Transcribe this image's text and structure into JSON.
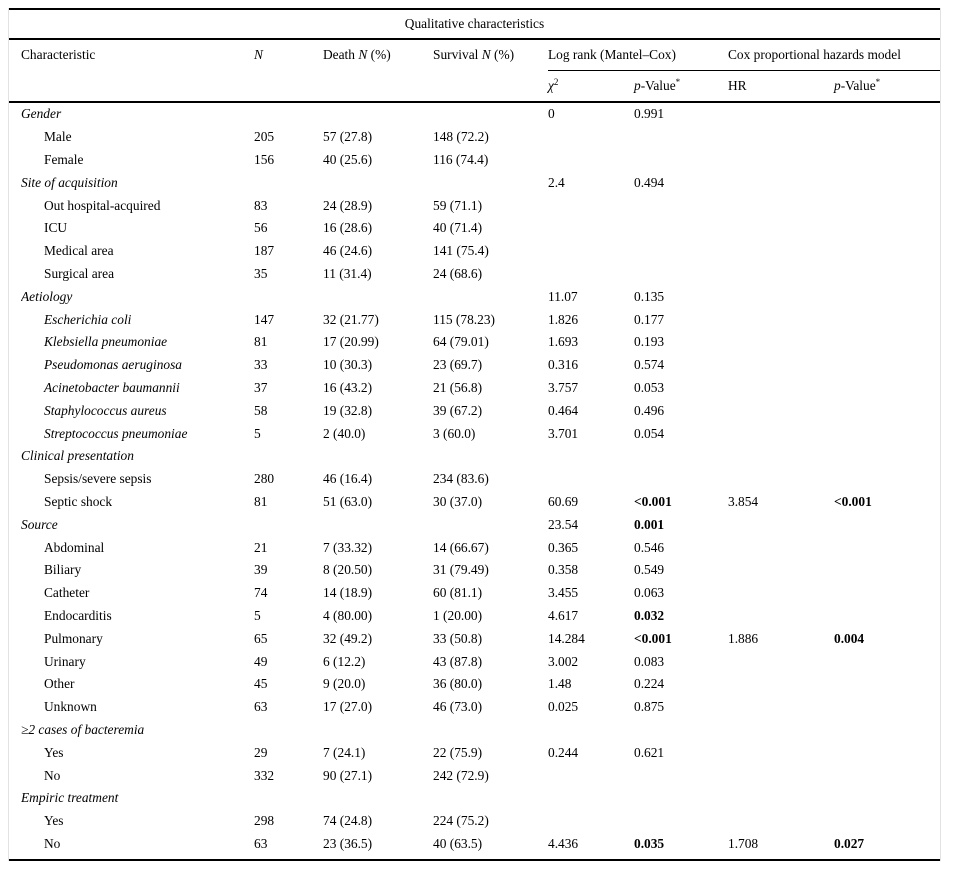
{
  "title": "Qualitative characteristics",
  "columns": {
    "characteristic": "Characteristic",
    "n": "N",
    "death_prefix": "Death ",
    "survival_prefix": "Survival ",
    "pct_suffix": " (%)",
    "logrank_group": "Log rank (Mantel–Cox)",
    "cox_group": "Cox proportional hazards model",
    "chi": "χ",
    "chi_sup": "2",
    "p_italic": "p",
    "p_rest": "-Value",
    "p_sup": "*",
    "hr": "HR"
  },
  "rows": [
    {
      "kind": "group",
      "label": "Gender",
      "chi2": "0",
      "p1": "0.991"
    },
    {
      "kind": "item",
      "label": "Male",
      "n": "205",
      "death": "57 (27.8)",
      "survival": "148 (72.2)"
    },
    {
      "kind": "item",
      "label": "Female",
      "n": "156",
      "death": "40 (25.6)",
      "survival": "116 (74.4)"
    },
    {
      "kind": "group",
      "label": "Site of acquisition",
      "chi2": "2.4",
      "p1": "0.494"
    },
    {
      "kind": "item",
      "label": "Out hospital-acquired",
      "n": "83",
      "death": "24 (28.9)",
      "survival": "59 (71.1)"
    },
    {
      "kind": "item",
      "label": "ICU",
      "n": "56",
      "death": "16 (28.6)",
      "survival": "40 (71.4)"
    },
    {
      "kind": "item",
      "label": "Medical area",
      "n": "187",
      "death": "46 (24.6)",
      "survival": "141 (75.4)"
    },
    {
      "kind": "item",
      "label": "Surgical area",
      "n": "35",
      "death": "11 (31.4)",
      "survival": "24 (68.6)"
    },
    {
      "kind": "group",
      "label": "Aetiology",
      "chi2": "11.07",
      "p1": "0.135"
    },
    {
      "kind": "item",
      "italic": true,
      "label": "Escherichia coli",
      "n": "147",
      "death": "32 (21.77)",
      "survival": "115 (78.23)",
      "chi2": "1.826",
      "p1": "0.177"
    },
    {
      "kind": "item",
      "italic": true,
      "label": "Klebsiella pneumoniae",
      "n": "81",
      "death": "17 (20.99)",
      "survival": "64 (79.01)",
      "chi2": "1.693",
      "p1": "0.193"
    },
    {
      "kind": "item",
      "italic": true,
      "label": "Pseudomonas aeruginosa",
      "n": "33",
      "death": "10 (30.3)",
      "survival": "23 (69.7)",
      "chi2": "0.316",
      "p1": "0.574"
    },
    {
      "kind": "item",
      "italic": true,
      "label": "Acinetobacter baumannii",
      "n": "37",
      "death": "16 (43.2)",
      "survival": "21 (56.8)",
      "chi2": "3.757",
      "p1": "0.053"
    },
    {
      "kind": "item",
      "italic": true,
      "label": "Staphylococcus aureus",
      "n": "58",
      "death": "19 (32.8)",
      "survival": "39 (67.2)",
      "chi2": "0.464",
      "p1": "0.496"
    },
    {
      "kind": "item",
      "italic": true,
      "label": "Streptococcus pneumoniae",
      "n": "5",
      "death": "2 (40.0)",
      "survival": "3 (60.0)",
      "chi2": "3.701",
      "p1": "0.054"
    },
    {
      "kind": "group",
      "label": "Clinical presentation"
    },
    {
      "kind": "item",
      "label": "Sepsis/severe sepsis",
      "n": "280",
      "death": "46 (16.4)",
      "survival": "234 (83.6)"
    },
    {
      "kind": "item",
      "label": "Septic shock",
      "n": "81",
      "death": "51 (63.0)",
      "survival": "30 (37.0)",
      "chi2": "60.69",
      "p1": "<0.001",
      "p1_bold": true,
      "hr": "3.854",
      "p2": "<0.001",
      "p2_bold": true
    },
    {
      "kind": "group",
      "label": "Source",
      "chi2": "23.54",
      "p1": "0.001",
      "p1_bold": true
    },
    {
      "kind": "item",
      "label": "Abdominal",
      "n": "21",
      "death": "7 (33.32)",
      "survival": "14 (66.67)",
      "chi2": "0.365",
      "p1": "0.546"
    },
    {
      "kind": "item",
      "label": "Biliary",
      "n": "39",
      "death": "8 (20.50)",
      "survival": "31 (79.49)",
      "chi2": "0.358",
      "p1": "0.549"
    },
    {
      "kind": "item",
      "label": "Catheter",
      "n": "74",
      "death": "14 (18.9)",
      "survival": "60 (81.1)",
      "chi2": "3.455",
      "p1": "0.063"
    },
    {
      "kind": "item",
      "label": "Endocarditis",
      "n": "5",
      "death": "4 (80.00)",
      "survival": "1 (20.00)",
      "chi2": "4.617",
      "p1": "0.032",
      "p1_bold": true
    },
    {
      "kind": "item",
      "label": "Pulmonary",
      "n": "65",
      "death": "32 (49.2)",
      "survival": "33 (50.8)",
      "chi2": "14.284",
      "p1": "<0.001",
      "p1_bold": true,
      "hr": "1.886",
      "p2": "0.004",
      "p2_bold": true
    },
    {
      "kind": "item",
      "label": "Urinary",
      "n": "49",
      "death": "6 (12.2)",
      "survival": "43 (87.8)",
      "chi2": "3.002",
      "p1": "0.083"
    },
    {
      "kind": "item",
      "label": "Other",
      "n": "45",
      "death": "9 (20.0)",
      "survival": "36 (80.0)",
      "chi2": "1.48",
      "p1": "0.224"
    },
    {
      "kind": "item",
      "label": "Unknown",
      "n": "63",
      "death": "17 (27.0)",
      "survival": "46 (73.0)",
      "chi2": "0.025",
      "p1": "0.875"
    },
    {
      "kind": "group",
      "label": "≥2 cases of bacteremia"
    },
    {
      "kind": "item",
      "label": "Yes",
      "n": "29",
      "death": "7 (24.1)",
      "survival": "22 (75.9)",
      "chi2": "0.244",
      "p1": "0.621"
    },
    {
      "kind": "item",
      "label": "No",
      "n": "332",
      "death": "90 (27.1)",
      "survival": "242 (72.9)"
    },
    {
      "kind": "group",
      "label": "Empiric treatment"
    },
    {
      "kind": "item",
      "label": "Yes",
      "n": "298",
      "death": "74 (24.8)",
      "survival": "224 (75.2)"
    },
    {
      "kind": "item",
      "label": "No",
      "n": "63",
      "death": "23 (36.5)",
      "survival": "40 (63.5)",
      "chi2": "4.436",
      "p1": "0.035",
      "p1_bold": true,
      "hr": "1.708",
      "p2": "0.027",
      "p2_bold": true
    }
  ]
}
